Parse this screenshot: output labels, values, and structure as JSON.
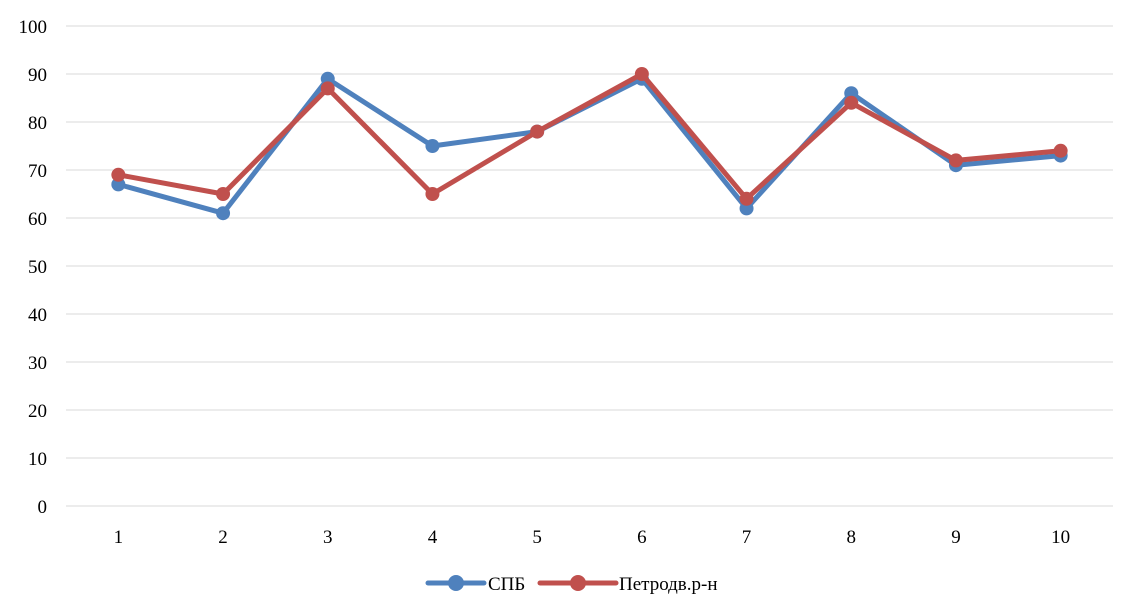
{
  "chart_data": {
    "type": "line",
    "x": [
      "1",
      "2",
      "3",
      "4",
      "5",
      "6",
      "7",
      "8",
      "9",
      "10"
    ],
    "series": [
      {
        "name": "СПБ",
        "color": "#4f81bd",
        "values": [
          67,
          61,
          89,
          75,
          78,
          89,
          62,
          86,
          71,
          73
        ]
      },
      {
        "name": "Петродв.р-н",
        "color": "#c0504d",
        "values": [
          69,
          65,
          87,
          65,
          78,
          90,
          64,
          84,
          72,
          74
        ]
      }
    ],
    "ylim": [
      0,
      100
    ],
    "yticks": [
      "0",
      "10",
      "20",
      "30",
      "40",
      "50",
      "60",
      "70",
      "80",
      "90",
      "100"
    ],
    "grid": true,
    "legend_position": "bottom-center",
    "gridline_color": "#d9d9d9"
  }
}
